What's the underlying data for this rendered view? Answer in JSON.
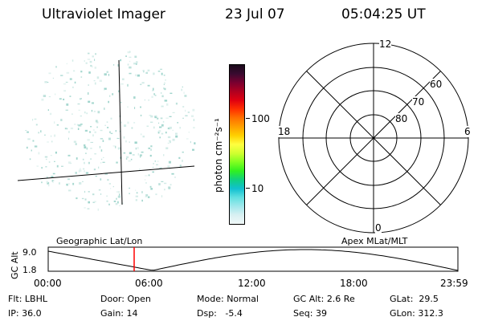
{
  "header": {
    "instrument": "Ultraviolet Imager",
    "date": "23 Jul 07",
    "time": "05:04:25 UT"
  },
  "colorbar": {
    "unit_label": "photon cm⁻²s⁻¹",
    "ticks": [
      "100",
      "10"
    ],
    "colors": [
      "#1a0a1a",
      "#3a0a30",
      "#7a0030",
      "#b00020",
      "#e00010",
      "#ff3000",
      "#ff7000",
      "#ffa000",
      "#ffd000",
      "#ffff40",
      "#d0ff30",
      "#80ff20",
      "#30f020",
      "#10d080",
      "#10c0d0",
      "#60e0e0",
      "#a0e8ec",
      "#d8f0f2",
      "#f0f8f8"
    ]
  },
  "polar": {
    "mlt_top": "12",
    "mlt_left": "18",
    "mlt_right": "6",
    "mlt_bottom": "0",
    "lat_60": "60",
    "lat_70": "70",
    "lat_80": "80"
  },
  "timeline": {
    "left_label": "Geographic Lat/Lon",
    "right_label": "Apex MLat/MLT",
    "axis_label": "GC Alt",
    "y_top": "9.0",
    "y_bottom": "1.8",
    "x_ticks": [
      "00:00",
      "06:00",
      "12:00",
      "18:00",
      "23:59"
    ],
    "marker_color": "#ff0000"
  },
  "info": {
    "filter_label": "Flt:",
    "filter": "LBHL",
    "ip_label": "IP:",
    "ip": "36.0",
    "door_label": "Door:",
    "door": "Open",
    "gain_label": "Gain:",
    "gain": "14",
    "mode_label": "Mode:",
    "mode": "Normal",
    "dsp_label": "Dsp:",
    "dsp": "-5.4",
    "gcalt_label": "GC Alt:",
    "gcalt": "2.6 Re",
    "seq_label": "Seq:",
    "seq": "39",
    "glat_label": "GLat:",
    "glat": "29.5",
    "glon_label": "GLon:",
    "glon": "312.3"
  }
}
